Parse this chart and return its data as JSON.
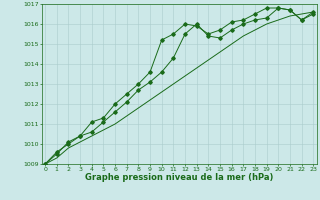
{
  "background_color": "#cce8e8",
  "plot_bg_color": "#cce8e8",
  "grid_color": "#aacccc",
  "line_color": "#1a6b1a",
  "title": "Graphe pression niveau de la mer (hPa)",
  "ylim": [
    1009,
    1017
  ],
  "xlim": [
    0,
    23
  ],
  "yticks": [
    1009,
    1010,
    1011,
    1012,
    1013,
    1014,
    1015,
    1016,
    1017
  ],
  "xticks": [
    0,
    1,
    2,
    3,
    4,
    5,
    6,
    7,
    8,
    9,
    10,
    11,
    12,
    13,
    14,
    15,
    16,
    17,
    18,
    19,
    20,
    21,
    22,
    23
  ],
  "series1_x": [
    0,
    1,
    2,
    3,
    4,
    5,
    6,
    7,
    8,
    9,
    10,
    11,
    12,
    13,
    14,
    15,
    16,
    17,
    18,
    19,
    20,
    21,
    22,
    23
  ],
  "series1_y": [
    1009.0,
    1009.6,
    1010.0,
    1010.4,
    1010.6,
    1011.1,
    1011.6,
    1012.1,
    1012.7,
    1013.1,
    1013.6,
    1014.3,
    1015.5,
    1016.0,
    1015.4,
    1015.3,
    1015.7,
    1016.0,
    1016.2,
    1016.3,
    1016.8,
    1016.7,
    1016.2,
    1016.6
  ],
  "series2_x": [
    0,
    1,
    2,
    3,
    4,
    5,
    6,
    7,
    8,
    9,
    10,
    11,
    12,
    13,
    14,
    15,
    16,
    17,
    18,
    19,
    20,
    21,
    22,
    23
  ],
  "series2_y": [
    1009.0,
    1009.3,
    1009.8,
    1010.1,
    1010.4,
    1010.7,
    1011.0,
    1011.4,
    1011.8,
    1012.2,
    1012.6,
    1013.0,
    1013.4,
    1013.8,
    1014.2,
    1014.6,
    1015.0,
    1015.4,
    1015.7,
    1016.0,
    1016.2,
    1016.4,
    1016.5,
    1016.6
  ],
  "series3_x": [
    0,
    1,
    2,
    3,
    4,
    5,
    6,
    7,
    8,
    9,
    10,
    11,
    12,
    13,
    14,
    15,
    16,
    17,
    18,
    19,
    20,
    21,
    22,
    23
  ],
  "series3_y": [
    1009.0,
    1009.5,
    1010.1,
    1010.4,
    1011.1,
    1011.3,
    1012.0,
    1012.5,
    1013.0,
    1013.6,
    1015.2,
    1015.5,
    1016.0,
    1015.9,
    1015.5,
    1015.7,
    1016.1,
    1016.2,
    1016.5,
    1016.8,
    1016.8,
    1016.7,
    1016.2,
    1016.5
  ],
  "title_fontsize": 6,
  "tick_fontsize": 4.5,
  "marker_size": 1.8,
  "line_width": 0.7
}
